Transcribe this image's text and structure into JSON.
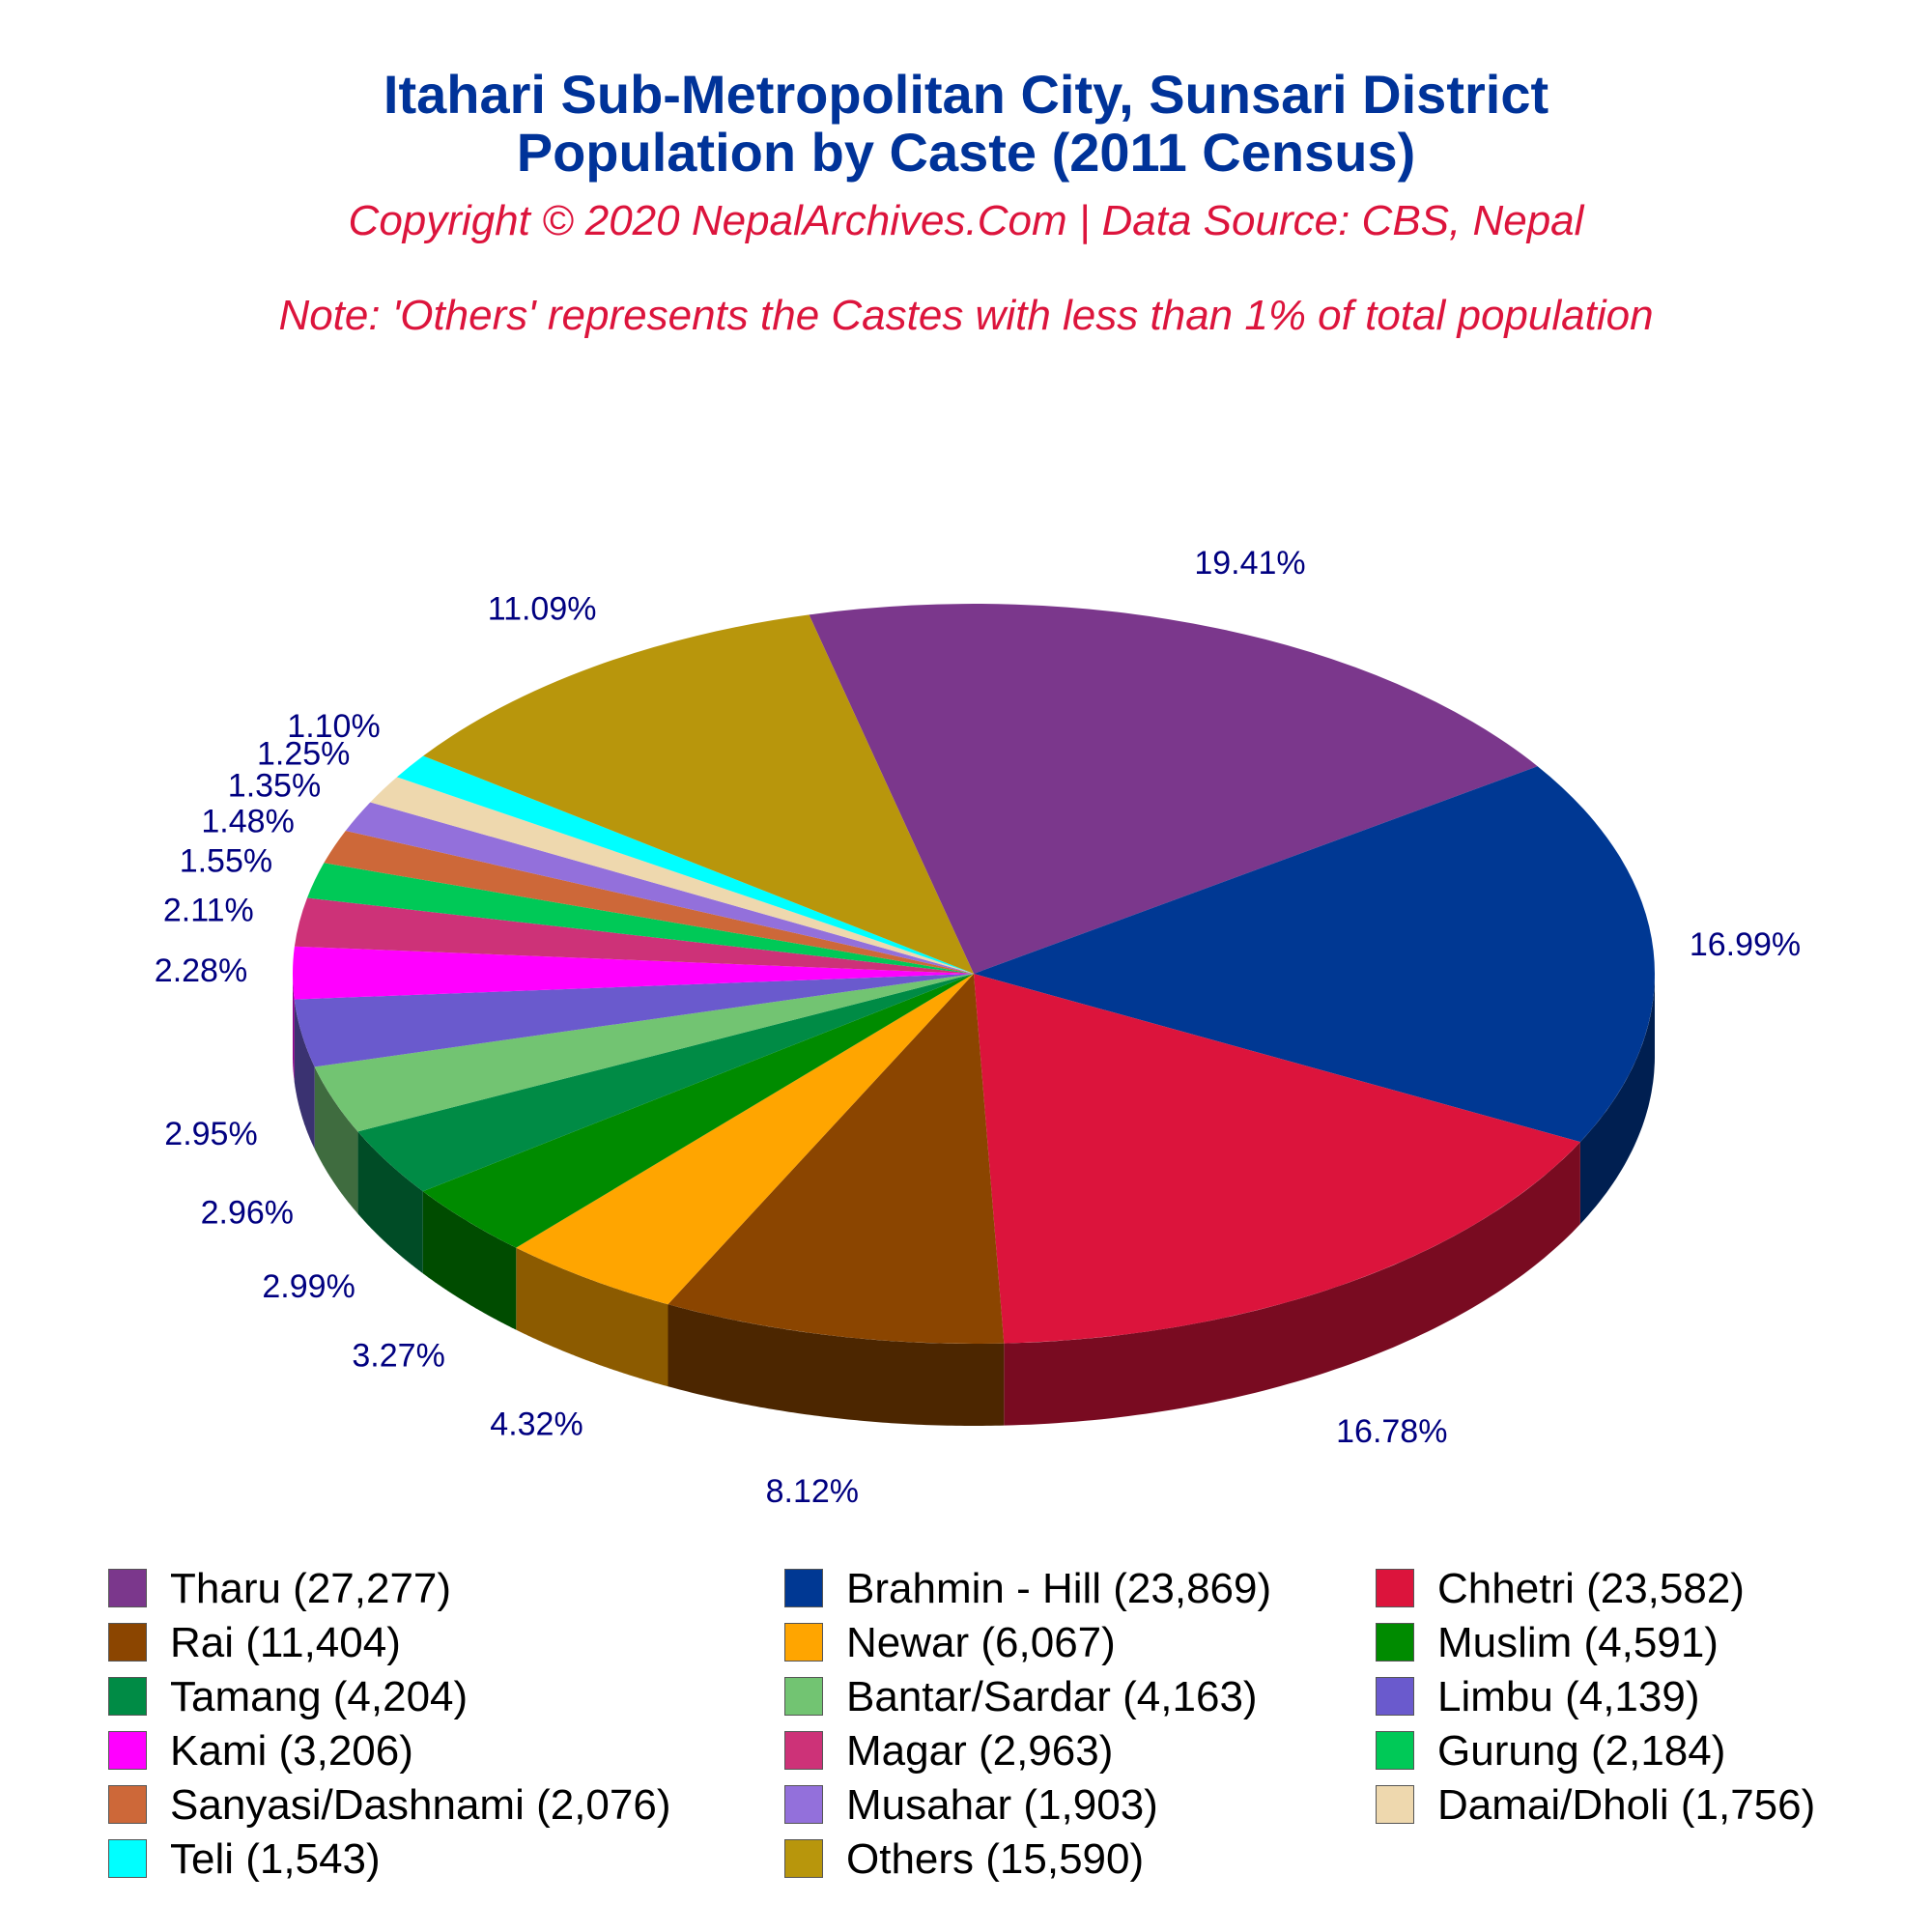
{
  "header": {
    "title_line1": "Itahari Sub-Metropolitan City, Sunsari District",
    "title_line2": "Population by Caste (2011 Census)",
    "copyright": "Copyright © 2020 NepalArchives.Com | Data Source: CBS, Nepal",
    "note": "Note: 'Others' represents the Castes with less than 1% of total population"
  },
  "chart_data": {
    "type": "pie",
    "style": "3d",
    "legend_position": "bottom",
    "slices": [
      {
        "label": "Tharu",
        "value": 27277,
        "percent_label": "19.41%",
        "legend": "Tharu (27,277)",
        "color": "#7b378c"
      },
      {
        "label": "Brahmin - Hill",
        "value": 23869,
        "percent_label": "16.99%",
        "legend": "Brahmin - Hill (23,869)",
        "color": "#003893"
      },
      {
        "label": "Chhetri",
        "value": 23582,
        "percent_label": "16.78%",
        "legend": "Chhetri (23,582)",
        "color": "#dc143c"
      },
      {
        "label": "Rai",
        "value": 11404,
        "percent_label": "8.12%",
        "legend": "Rai (11,404)",
        "color": "#8b4500"
      },
      {
        "label": "Newar",
        "value": 6067,
        "percent_label": "4.32%",
        "legend": "Newar (6,067)",
        "color": "#ffa500"
      },
      {
        "label": "Muslim",
        "value": 4591,
        "percent_label": "3.27%",
        "legend": "Muslim (4,591)",
        "color": "#008b00"
      },
      {
        "label": "Tamang",
        "value": 4204,
        "percent_label": "2.99%",
        "legend": "Tamang (4,204)",
        "color": "#008b45"
      },
      {
        "label": "Bantar/Sardar",
        "value": 4163,
        "percent_label": "2.96%",
        "legend": "Bantar/Sardar (4,163)",
        "color": "#72c472"
      },
      {
        "label": "Limbu",
        "value": 4139,
        "percent_label": "2.95%",
        "legend": "Limbu (4,139)",
        "color": "#6a5acd"
      },
      {
        "label": "Kami",
        "value": 3206,
        "percent_label": "2.28%",
        "legend": "Kami (3,206)",
        "color": "#ff00ff"
      },
      {
        "label": "Magar",
        "value": 2963,
        "percent_label": "2.11%",
        "legend": "Magar (2,963)",
        "color": "#cd3278"
      },
      {
        "label": "Gurung",
        "value": 2184,
        "percent_label": "1.55%",
        "legend": "Gurung (2,184)",
        "color": "#00c957"
      },
      {
        "label": "Sanyasi/Dashnami",
        "value": 2076,
        "percent_label": "1.48%",
        "legend": "Sanyasi/Dashnami (2,076)",
        "color": "#cd6839"
      },
      {
        "label": "Musahar",
        "value": 1903,
        "percent_label": "1.35%",
        "legend": "Musahar (1,903)",
        "color": "#9370db"
      },
      {
        "label": "Damai/Dholi",
        "value": 1756,
        "percent_label": "1.25%",
        "legend": "Damai/Dholi (1,756)",
        "color": "#eed8ae"
      },
      {
        "label": "Teli",
        "value": 1543,
        "percent_label": "1.10%",
        "legend": "Teli (1,543)",
        "color": "#00ffff"
      },
      {
        "label": "Others",
        "value": 15590,
        "percent_label": "11.09%",
        "legend": "Others (15,590)",
        "color": "#b8960c"
      }
    ]
  }
}
